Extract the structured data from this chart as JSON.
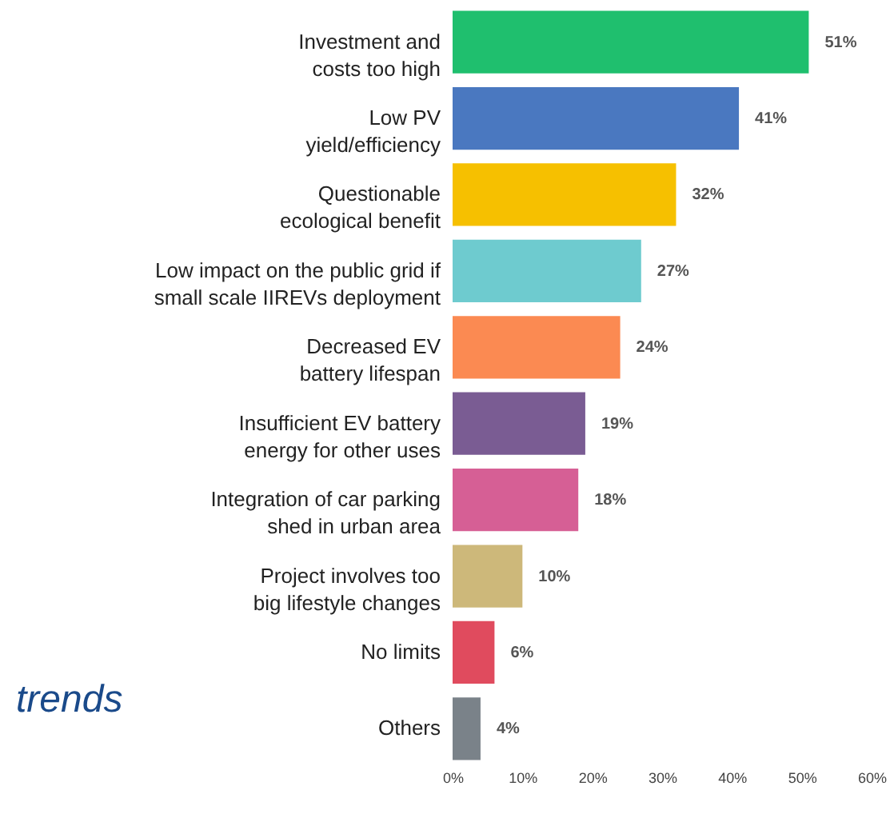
{
  "chart_data": {
    "type": "bar",
    "orientation": "horizontal",
    "categories": [
      "Investment and costs too high",
      "Low PV yield/efficiency",
      "Questionable ecological benefit",
      "Low impact on the public grid if small scale IIREVs deployment",
      "Decreased EV battery lifespan",
      "Insufficient EV battery energy for other uses",
      "Integration of car parking shed in urban area",
      "Project involves too big lifestyle changes",
      "No limits",
      "Others"
    ],
    "values": [
      51,
      41,
      32,
      27,
      24,
      19,
      18,
      10,
      6,
      4
    ],
    "colors": [
      "#1fbf6e",
      "#4a78c0",
      "#f6c000",
      "#6ecbcf",
      "#fb8a52",
      "#7a5c93",
      "#d65f95",
      "#cdb87a",
      "#e04b5e",
      "#7a8289"
    ],
    "value_labels": [
      "51%",
      "41%",
      "32%",
      "27%",
      "24%",
      "19%",
      "18%",
      "10%",
      "6%",
      "4%"
    ],
    "xlim": [
      0,
      60
    ],
    "xticks": [
      {
        "value": 0,
        "label": "0%"
      },
      {
        "value": 10,
        "label": "10%"
      },
      {
        "value": 20,
        "label": "20%"
      },
      {
        "value": 30,
        "label": "30%"
      },
      {
        "value": 40,
        "label": "40%"
      },
      {
        "value": 50,
        "label": "50%"
      },
      {
        "value": 60,
        "label": "60%"
      }
    ],
    "grid": false,
    "annotations": [
      "trends"
    ]
  }
}
